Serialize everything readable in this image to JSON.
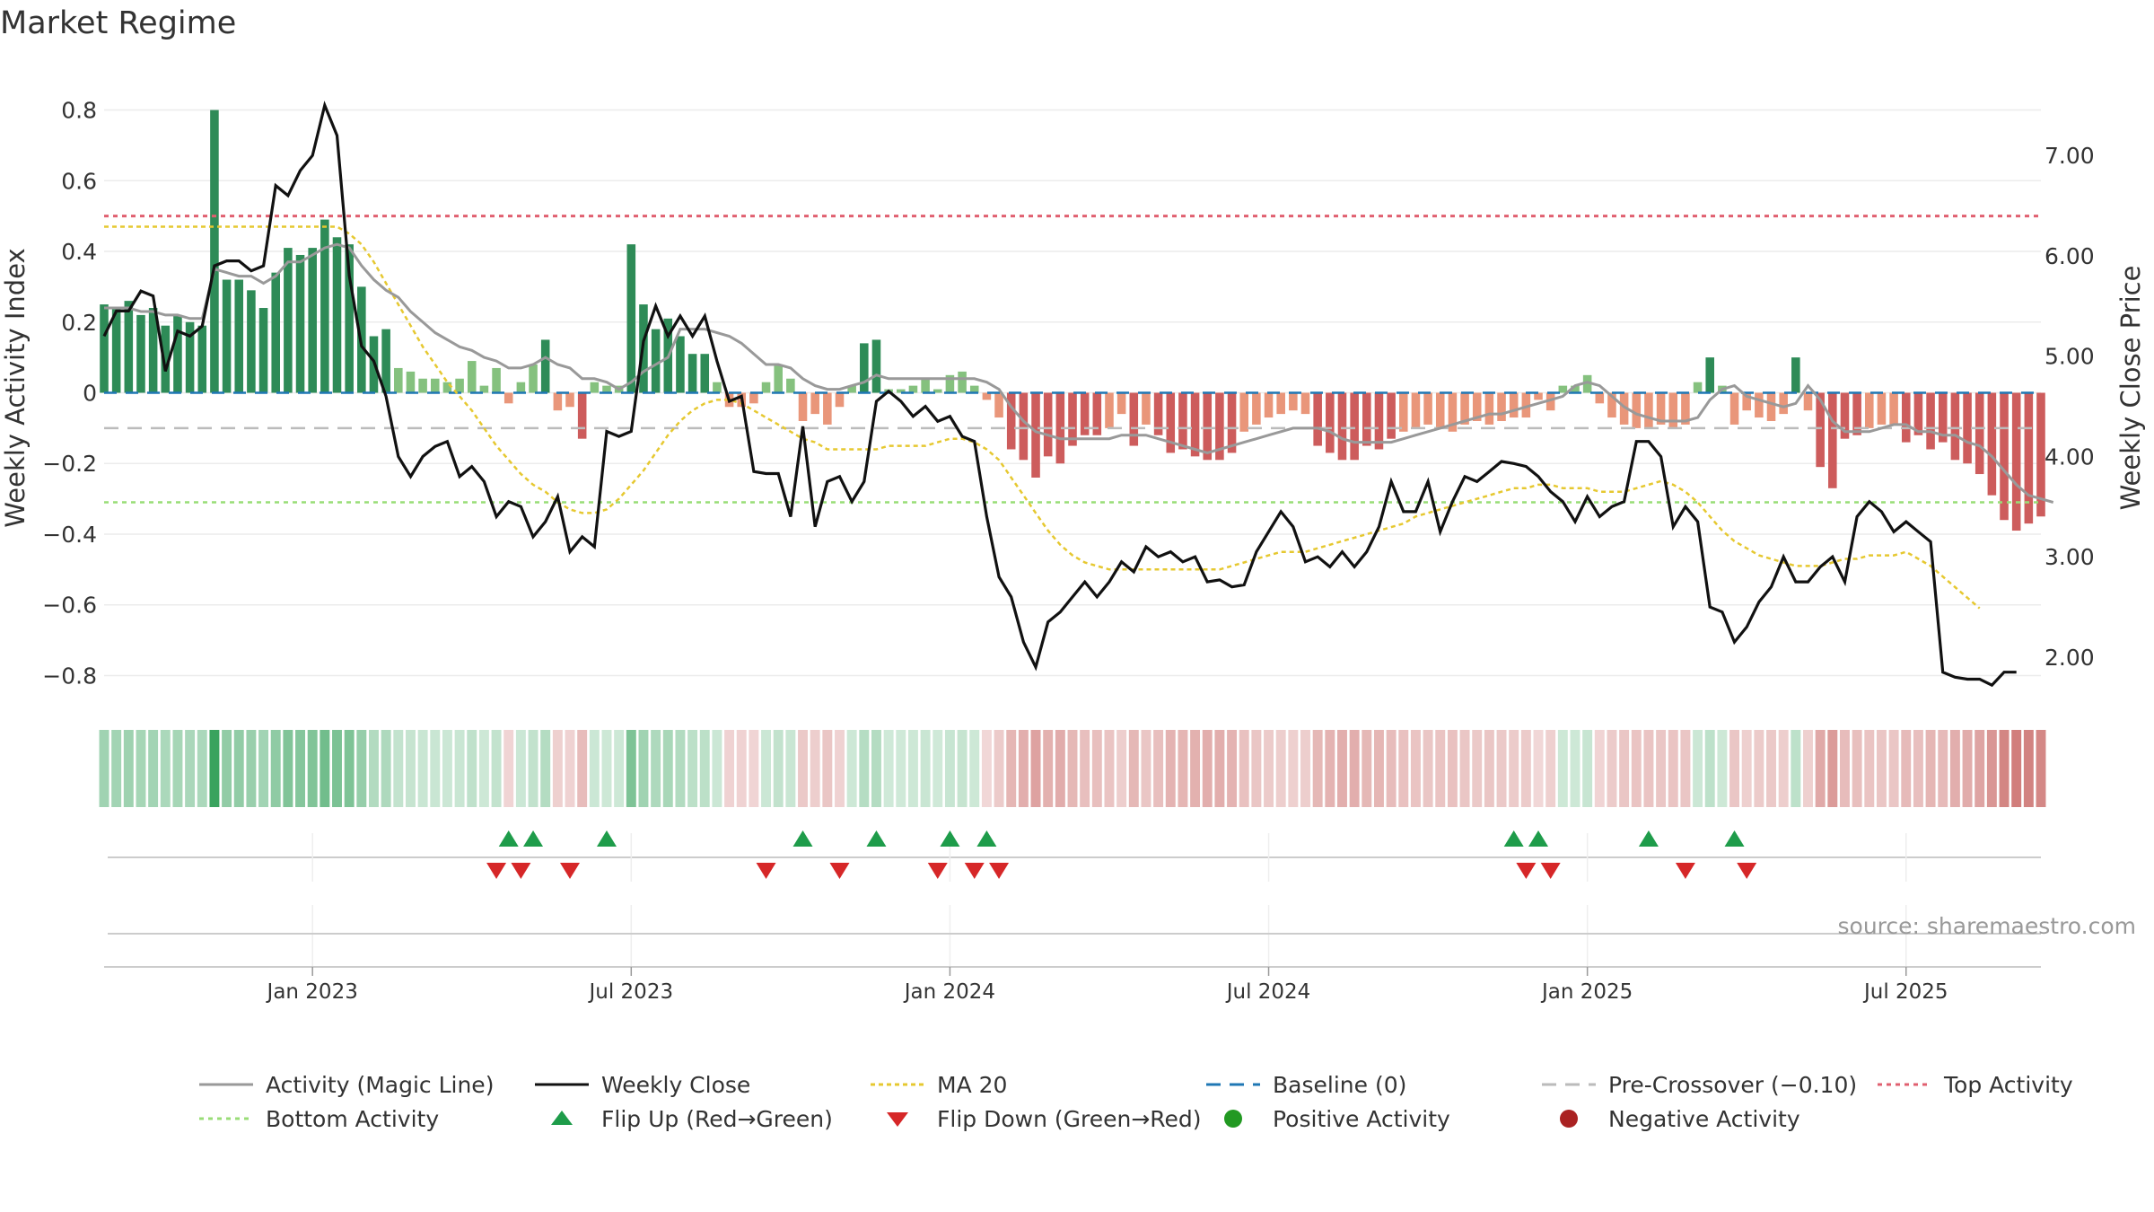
{
  "title": "Market Regime",
  "source_text": "source: sharemaestro.com",
  "colors": {
    "green_dark": "#2e8b57",
    "green_light": "#85c17e",
    "red_dark": "#cd5c5c",
    "red_light": "#e9967a",
    "magic_line": "#999999",
    "weekly_close": "#111111",
    "ma20": "#e6c830",
    "baseline": "#1f77b4",
    "pre_crossover": "#bbbbbb",
    "top_activity": "#e06070",
    "bottom_activity": "#99dd77",
    "flip_up": "#1e9c4a",
    "flip_down": "#d62728",
    "positive_dot": "#229922",
    "negative_dot": "#aa2222"
  },
  "chart_data": {
    "type": "bar",
    "title": "Market Regime",
    "ylabel": "Weekly Activity Index",
    "y2label": "Weekly Close Price",
    "ylim": [
      -0.87,
      0.87
    ],
    "y2lim": [
      1.57,
      7.7
    ],
    "yticks": [
      {
        "v": 0.8,
        "label": "0.8"
      },
      {
        "v": 0.6,
        "label": "0.6"
      },
      {
        "v": 0.4,
        "label": "0.4"
      },
      {
        "v": 0.2,
        "label": "0.2"
      },
      {
        "v": 0,
        "label": "0"
      },
      {
        "v": -0.2,
        "label": "−0.2"
      },
      {
        "v": -0.4,
        "label": "−0.4"
      },
      {
        "v": -0.6,
        "label": "−0.6"
      },
      {
        "v": -0.8,
        "label": "−0.8"
      }
    ],
    "y2ticks": [
      {
        "v": 7,
        "label": "7.00"
      },
      {
        "v": 6,
        "label": "6.00"
      },
      {
        "v": 5,
        "label": "5.00"
      },
      {
        "v": 4,
        "label": "4.00"
      },
      {
        "v": 3,
        "label": "3.00"
      },
      {
        "v": 2,
        "label": "2.00"
      }
    ],
    "xticks": [
      {
        "week": 17,
        "label": "Jan 2023"
      },
      {
        "week": 43,
        "label": "Jul 2023"
      },
      {
        "week": 69,
        "label": "Jan 2024"
      },
      {
        "week": 95,
        "label": "Jul 2024"
      },
      {
        "week": 121,
        "label": "Jan 2025"
      },
      {
        "week": 147,
        "label": "Jul 2025"
      }
    ],
    "xrange": [
      0,
      158
    ],
    "grid": true,
    "legend_placement": "bottom",
    "reference_lines": {
      "baseline": 0,
      "pre_crossover": -0.1,
      "top_activity": 0.5,
      "bottom_activity": -0.31
    },
    "activity": [
      0.25,
      0.24,
      0.26,
      0.22,
      0.24,
      0.19,
      0.22,
      0.2,
      0.19,
      0.8,
      0.32,
      0.32,
      0.29,
      0.24,
      0.34,
      0.41,
      0.39,
      0.41,
      0.49,
      0.44,
      0.42,
      0.3,
      0.16,
      0.18,
      0.07,
      0.06,
      0.04,
      0.04,
      0.03,
      0.04,
      0.09,
      0.02,
      0.07,
      -0.03,
      0.03,
      0.08,
      0.15,
      -0.05,
      -0.04,
      -0.13,
      0.03,
      0.02,
      0.02,
      0.42,
      0.25,
      0.18,
      0.21,
      0.16,
      0.11,
      0.11,
      0.03,
      -0.04,
      -0.04,
      -0.03,
      0.03,
      0.08,
      0.04,
      -0.08,
      -0.06,
      -0.09,
      -0.04,
      0.02,
      0.14,
      0.15,
      0.01,
      0.01,
      0.02,
      0.04,
      0.01,
      0.05,
      0.06,
      0.02,
      -0.02,
      -0.07,
      -0.16,
      -0.19,
      -0.24,
      -0.18,
      -0.2,
      -0.15,
      -0.12,
      -0.12,
      -0.1,
      -0.06,
      -0.15,
      -0.09,
      -0.12,
      -0.17,
      -0.16,
      -0.18,
      -0.19,
      -0.19,
      -0.17,
      -0.11,
      -0.09,
      -0.07,
      -0.06,
      -0.05,
      -0.06,
      -0.15,
      -0.17,
      -0.19,
      -0.19,
      -0.15,
      -0.16,
      -0.13,
      -0.11,
      -0.1,
      -0.09,
      -0.1,
      -0.11,
      -0.09,
      -0.08,
      -0.09,
      -0.08,
      -0.07,
      -0.07,
      -0.02,
      -0.05,
      0.02,
      0.02,
      0.05,
      -0.03,
      -0.07,
      -0.09,
      -0.1,
      -0.1,
      -0.09,
      -0.1,
      -0.09,
      0.03,
      0.1,
      0.02,
      -0.09,
      -0.05,
      -0.07,
      -0.08,
      -0.06,
      0.1,
      -0.05,
      -0.21,
      -0.27,
      -0.13,
      -0.12,
      -0.1,
      -0.09,
      -0.09,
      -0.14,
      -0.12,
      -0.16,
      -0.14,
      -0.19,
      -0.2,
      -0.23,
      -0.29,
      -0.36,
      -0.39,
      -0.37,
      -0.35
    ],
    "magic_line": [
      0.24,
      0.24,
      0.24,
      0.23,
      0.23,
      0.22,
      0.22,
      0.21,
      0.21,
      0.35,
      0.34,
      0.33,
      0.33,
      0.31,
      0.33,
      0.37,
      0.37,
      0.39,
      0.41,
      0.42,
      0.41,
      0.36,
      0.32,
      0.29,
      0.27,
      0.23,
      0.2,
      0.17,
      0.15,
      0.13,
      0.12,
      0.1,
      0.09,
      0.07,
      0.07,
      0.08,
      0.1,
      0.08,
      0.07,
      0.04,
      0.04,
      0.03,
      0.01,
      0.03,
      0.06,
      0.08,
      0.1,
      0.18,
      0.18,
      0.18,
      0.17,
      0.16,
      0.14,
      0.11,
      0.08,
      0.08,
      0.07,
      0.04,
      0.02,
      0.01,
      0.01,
      0.02,
      0.03,
      0.05,
      0.04,
      0.04,
      0.04,
      0.04,
      0.04,
      0.04,
      0.04,
      0.04,
      0.03,
      0.01,
      -0.04,
      -0.08,
      -0.11,
      -0.12,
      -0.13,
      -0.13,
      -0.13,
      -0.13,
      -0.13,
      -0.12,
      -0.12,
      -0.12,
      -0.13,
      -0.14,
      -0.15,
      -0.16,
      -0.17,
      -0.16,
      -0.15,
      -0.14,
      -0.13,
      -0.12,
      -0.11,
      -0.1,
      -0.1,
      -0.1,
      -0.11,
      -0.13,
      -0.14,
      -0.14,
      -0.14,
      -0.14,
      -0.13,
      -0.12,
      -0.11,
      -0.1,
      -0.09,
      -0.08,
      -0.07,
      -0.06,
      -0.06,
      -0.05,
      -0.04,
      -0.03,
      -0.02,
      -0.01,
      0.02,
      0.03,
      0.02,
      -0.01,
      -0.04,
      -0.06,
      -0.07,
      -0.08,
      -0.08,
      -0.08,
      -0.07,
      -0.02,
      0.01,
      0.02,
      -0.01,
      -0.02,
      -0.03,
      -0.04,
      -0.03,
      0.02,
      -0.02,
      -0.08,
      -0.11,
      -0.11,
      -0.11,
      -0.1,
      -0.09,
      -0.09,
      -0.11,
      -0.11,
      -0.12,
      -0.12,
      -0.14,
      -0.15,
      -0.18,
      -0.22,
      -0.26,
      -0.29,
      -0.3,
      -0.31
    ],
    "weekly_close": [
      5.2,
      5.45,
      5.45,
      5.65,
      5.6,
      4.85,
      5.25,
      5.2,
      5.3,
      5.9,
      5.95,
      5.95,
      5.85,
      5.9,
      6.7,
      6.6,
      6.85,
      7.0,
      7.5,
      7.2,
      5.8,
      5.1,
      4.95,
      4.6,
      4.0,
      3.8,
      4.0,
      4.1,
      4.15,
      3.8,
      3.9,
      3.75,
      3.4,
      3.55,
      3.5,
      3.2,
      3.35,
      3.6,
      3.05,
      3.2,
      3.1,
      4.25,
      4.2,
      4.25,
      5.15,
      5.5,
      5.2,
      5.4,
      5.2,
      5.4,
      4.95,
      4.55,
      4.6,
      3.85,
      3.83,
      3.83,
      3.4,
      4.3,
      3.3,
      3.75,
      3.8,
      3.55,
      3.75,
      4.55,
      4.65,
      4.55,
      4.4,
      4.5,
      4.35,
      4.4,
      4.2,
      4.15,
      3.4,
      2.8,
      2.6,
      2.15,
      1.9,
      2.35,
      2.45,
      2.6,
      2.75,
      2.6,
      2.75,
      2.95,
      2.85,
      3.1,
      3.0,
      3.05,
      2.95,
      3.0,
      2.75,
      2.77,
      2.7,
      2.72,
      3.05,
      3.25,
      3.45,
      3.3,
      2.95,
      3.0,
      2.9,
      3.05,
      2.9,
      3.05,
      3.3,
      3.75,
      3.45,
      3.45,
      3.75,
      3.25,
      3.55,
      3.8,
      3.75,
      3.85,
      3.95,
      3.93,
      3.9,
      3.8,
      3.65,
      3.55,
      3.35,
      3.6,
      3.4,
      3.5,
      3.55,
      4.15,
      4.15,
      4.0,
      3.3,
      3.5,
      3.35,
      2.5,
      2.45,
      2.15,
      2.3,
      2.55,
      2.7,
      3.0,
      2.75,
      2.75,
      2.9,
      3.0,
      2.75,
      3.4,
      3.55,
      3.45,
      3.25,
      3.35,
      3.25,
      3.15,
      1.85,
      1.8,
      1.78,
      1.78,
      1.72,
      1.85,
      1.85
    ],
    "ma20": [
      0.47,
      0.47,
      0.47,
      0.47,
      0.47,
      0.47,
      0.47,
      0.47,
      0.47,
      0.47,
      0.47,
      0.47,
      0.47,
      0.47,
      0.47,
      0.47,
      0.47,
      0.47,
      0.47,
      0.47,
      0.45,
      0.42,
      0.37,
      0.31,
      0.25,
      0.19,
      0.13,
      0.08,
      0.03,
      -0.01,
      -0.05,
      -0.1,
      -0.15,
      -0.19,
      -0.23,
      -0.26,
      -0.28,
      -0.31,
      -0.33,
      -0.34,
      -0.34,
      -0.33,
      -0.3,
      -0.26,
      -0.22,
      -0.17,
      -0.12,
      -0.08,
      -0.05,
      -0.03,
      -0.02,
      -0.02,
      -0.03,
      -0.05,
      -0.07,
      -0.09,
      -0.11,
      -0.13,
      -0.14,
      -0.16,
      -0.16,
      -0.16,
      -0.16,
      -0.16,
      -0.15,
      -0.15,
      -0.15,
      -0.15,
      -0.14,
      -0.13,
      -0.13,
      -0.14,
      -0.16,
      -0.19,
      -0.24,
      -0.29,
      -0.34,
      -0.39,
      -0.43,
      -0.46,
      -0.48,
      -0.49,
      -0.5,
      -0.5,
      -0.5,
      -0.5,
      -0.5,
      -0.5,
      -0.5,
      -0.5,
      -0.5,
      -0.5,
      -0.49,
      -0.48,
      -0.47,
      -0.46,
      -0.45,
      -0.45,
      -0.45,
      -0.44,
      -0.43,
      -0.42,
      -0.41,
      -0.4,
      -0.39,
      -0.38,
      -0.37,
      -0.35,
      -0.34,
      -0.33,
      -0.32,
      -0.31,
      -0.3,
      -0.29,
      -0.28,
      -0.27,
      -0.27,
      -0.26,
      -0.26,
      -0.27,
      -0.27,
      -0.27,
      -0.28,
      -0.28,
      -0.28,
      -0.27,
      -0.26,
      -0.25,
      -0.26,
      -0.28,
      -0.31,
      -0.35,
      -0.39,
      -0.42,
      -0.44,
      -0.46,
      -0.47,
      -0.48,
      -0.49,
      -0.49,
      -0.49,
      -0.48,
      -0.47,
      -0.47,
      -0.46,
      -0.46,
      -0.46,
      -0.45,
      -0.47,
      -0.49,
      -0.52,
      -0.55,
      -0.58,
      -0.61
    ],
    "flips_up": [
      33,
      35,
      41,
      57,
      63,
      69,
      72,
      115,
      117,
      126,
      133
    ],
    "flips_down": [
      32,
      34,
      38,
      54,
      60,
      68,
      71,
      73,
      116,
      118,
      129,
      134
    ]
  },
  "legend": [
    {
      "key": "magic",
      "label": "Activity (Magic Line)"
    },
    {
      "key": "close",
      "label": "Weekly Close"
    },
    {
      "key": "ma20",
      "label": "MA 20"
    },
    {
      "key": "baseline",
      "label": "Baseline (0)"
    },
    {
      "key": "pre",
      "label": "Pre-Crossover (−0.10)"
    },
    {
      "key": "top",
      "label": "Top Activity"
    },
    {
      "key": "bottom",
      "label": "Bottom Activity"
    },
    {
      "key": "flipup",
      "label": "Flip Up (Red→Green)"
    },
    {
      "key": "flipdown",
      "label": "Flip Down (Green→Red)"
    },
    {
      "key": "pos",
      "label": "Positive Activity"
    },
    {
      "key": "neg",
      "label": "Negative Activity"
    }
  ]
}
